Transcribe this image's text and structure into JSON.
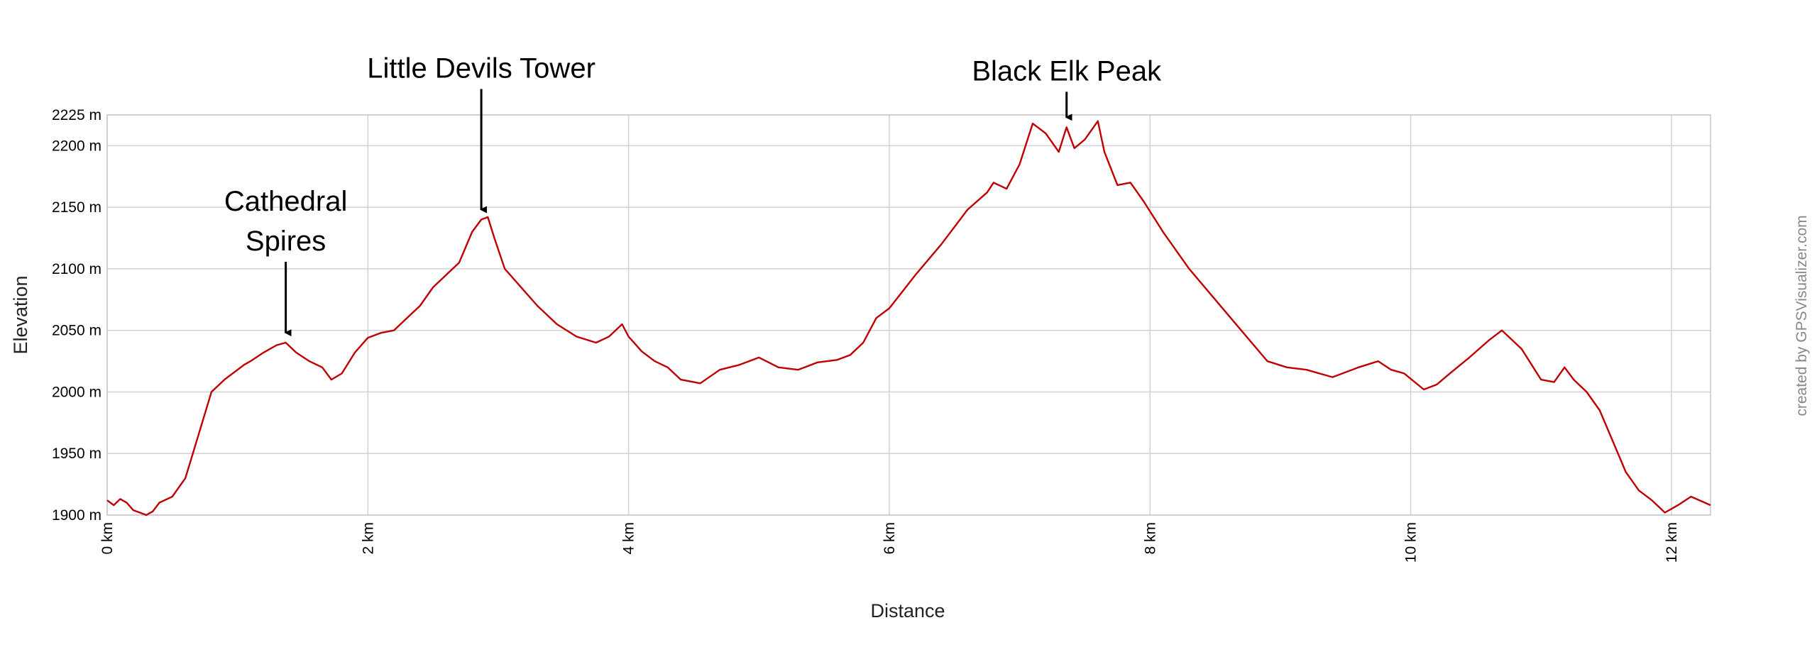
{
  "chart_data": {
    "type": "line",
    "title": "",
    "xlabel": "Distance",
    "ylabel": "Elevation",
    "xlim": [
      0,
      12.3
    ],
    "ylim": [
      1900,
      2225
    ],
    "x_ticks": [
      0,
      2,
      4,
      6,
      8,
      10,
      12
    ],
    "x_tick_labels": [
      "0 km",
      "2 km",
      "4 km",
      "6 km",
      "8 km",
      "10 km",
      "12 km"
    ],
    "y_ticks": [
      1900,
      1950,
      2000,
      2050,
      2100,
      2150,
      2200,
      2225
    ],
    "y_tick_labels": [
      "1900 m",
      "1950 m",
      "2000 m",
      "2050 m",
      "2100 m",
      "2150 m",
      "2200 m",
      "2225 m"
    ],
    "grid": true,
    "credit": "created by GPSVisualizer.com",
    "line_color": "#c00000",
    "series": [
      {
        "x": [
          0,
          0.05,
          0.1,
          0.15,
          0.2,
          0.25,
          0.3,
          0.35,
          0.4,
          0.5,
          0.6,
          0.7,
          0.8,
          0.9,
          1.0,
          1.05,
          1.1,
          1.2,
          1.3,
          1.37,
          1.45,
          1.55,
          1.65,
          1.72,
          1.8,
          1.9,
          2.0,
          2.1,
          2.2,
          2.3,
          2.4,
          2.5,
          2.6,
          2.7,
          2.8,
          2.87,
          2.92,
          2.97,
          3.05,
          3.15,
          3.3,
          3.45,
          3.6,
          3.75,
          3.85,
          3.95,
          4.0,
          4.1,
          4.2,
          4.3,
          4.4,
          4.5,
          4.55,
          4.7,
          4.85,
          5.0,
          5.15,
          5.3,
          5.45,
          5.6,
          5.7,
          5.8,
          5.9,
          6.0,
          6.2,
          6.4,
          6.6,
          6.75,
          6.8,
          6.9,
          7.0,
          7.1,
          7.2,
          7.3,
          7.36,
          7.42,
          7.5,
          7.6,
          7.65,
          7.75,
          7.85,
          7.95,
          8.1,
          8.3,
          8.5,
          8.7,
          8.9,
          9.05,
          9.2,
          9.4,
          9.6,
          9.75,
          9.85,
          9.95,
          10.1,
          10.2,
          10.3,
          10.45,
          10.6,
          10.7,
          10.85,
          11.0,
          11.1,
          11.18,
          11.25,
          11.35,
          11.45,
          11.55,
          11.65,
          11.75,
          11.85,
          11.95,
          12.05,
          12.15,
          12.3
        ],
        "y": [
          1912,
          1908,
          1913,
          1910,
          1904,
          1902,
          1900,
          1903,
          1910,
          1915,
          1930,
          1965,
          2000,
          2010,
          2018,
          2022,
          2025,
          2032,
          2038,
          2040,
          2032,
          2025,
          2020,
          2010,
          2015,
          2032,
          2044,
          2048,
          2050,
          2060,
          2070,
          2085,
          2095,
          2105,
          2130,
          2140,
          2142,
          2125,
          2100,
          2088,
          2070,
          2055,
          2045,
          2040,
          2045,
          2055,
          2045,
          2033,
          2025,
          2020,
          2010,
          2008,
          2007,
          2018,
          2022,
          2028,
          2020,
          2018,
          2024,
          2026,
          2030,
          2040,
          2060,
          2068,
          2095,
          2120,
          2148,
          2162,
          2170,
          2165,
          2185,
          2218,
          2210,
          2195,
          2215,
          2198,
          2205,
          2220,
          2195,
          2168,
          2170,
          2155,
          2130,
          2100,
          2075,
          2050,
          2025,
          2020,
          2018,
          2012,
          2020,
          2025,
          2018,
          2015,
          2002,
          2006,
          2015,
          2028,
          2042,
          2050,
          2035,
          2010,
          2008,
          2020,
          2010,
          2000,
          1985,
          1960,
          1935,
          1920,
          1912,
          1902,
          1908,
          1915,
          1908
        ]
      }
    ],
    "annotations": [
      {
        "lines": [
          "Cathedral",
          "Spires"
        ],
        "x": 1.37,
        "y": 2040
      },
      {
        "lines": [
          "Little Devils Tower"
        ],
        "x": 2.87,
        "y": 2140
      },
      {
        "lines": [
          "Black Elk Peak"
        ],
        "x": 7.36,
        "y": 2215
      }
    ]
  }
}
